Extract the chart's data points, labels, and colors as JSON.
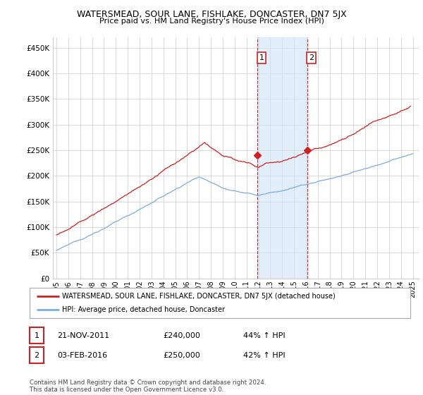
{
  "title": "WATERSMEAD, SOUR LANE, FISHLAKE, DONCASTER, DN7 5JX",
  "subtitle": "Price paid vs. HM Land Registry's House Price Index (HPI)",
  "ylabel_ticks": [
    "£0",
    "£50K",
    "£100K",
    "£150K",
    "£200K",
    "£250K",
    "£300K",
    "£350K",
    "£400K",
    "£450K"
  ],
  "ytick_values": [
    0,
    50000,
    100000,
    150000,
    200000,
    250000,
    300000,
    350000,
    400000,
    450000
  ],
  "ylim": [
    0,
    470000
  ],
  "xlim_start": 1994.7,
  "xlim_end": 2025.5,
  "hpi_color": "#7aade0",
  "price_color": "#cc2222",
  "shaded_color": "#d0e4f7",
  "shaded_alpha": 0.6,
  "marker1_x": 2011.9,
  "marker1_y": 240000,
  "marker2_x": 2016.1,
  "marker2_y": 250000,
  "vline1_x": 2011.9,
  "vline2_x": 2016.1,
  "legend_label1": "WATERSMEAD, SOUR LANE, FISHLAKE, DONCASTER, DN7 5JX (detached house)",
  "legend_label2": "HPI: Average price, detached house, Doncaster",
  "table_row1": [
    "1",
    "21-NOV-2011",
    "£240,000",
    "44% ↑ HPI"
  ],
  "table_row2": [
    "2",
    "03-FEB-2016",
    "£250,000",
    "42% ↑ HPI"
  ],
  "footer": "Contains HM Land Registry data © Crown copyright and database right 2024.\nThis data is licensed under the Open Government Licence v3.0.",
  "background_color": "#ffffff",
  "grid_color": "#cccccc"
}
